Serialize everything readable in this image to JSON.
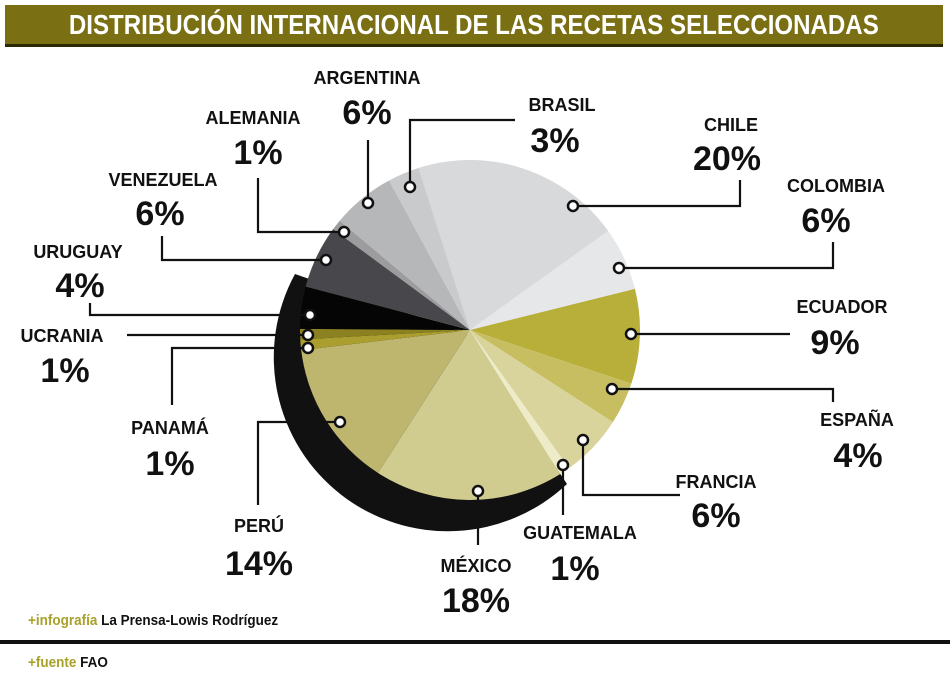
{
  "title": "DISTRIBUCIÓN INTERNACIONAL DE LAS RECETAS SELECCIONADAS",
  "chart_data": {
    "type": "pie",
    "title": "DISTRIBUCIÓN INTERNACIONAL DE LAS RECETAS SELECCIONADAS",
    "unit": "%",
    "start_angle_deg_clockwise_from_top": -17.6,
    "slices": [
      {
        "label": "CHILE",
        "value": 20,
        "display": "20%",
        "color": "#d8d9db"
      },
      {
        "label": "COLOMBIA",
        "value": 6,
        "display": "6%",
        "color": "#e6e7e9"
      },
      {
        "label": "ECUADOR",
        "value": 9,
        "display": "9%",
        "color": "#b8ae3a"
      },
      {
        "label": "ESPAÑA",
        "value": 4,
        "display": "4%",
        "color": "#c7be62"
      },
      {
        "label": "FRANCIA",
        "value": 6,
        "display": "6%",
        "color": "#d9d49c"
      },
      {
        "label": "GUATEMALA",
        "value": 1,
        "display": "1%",
        "color": "#eeebc8"
      },
      {
        "label": "MÉXICO",
        "value": 18,
        "display": "18%",
        "color": "#d0cc90"
      },
      {
        "label": "PERÚ",
        "value": 14,
        "display": "14%",
        "color": "#beb56f"
      },
      {
        "label": "PANAMÁ",
        "value": 1,
        "display": "1%",
        "color": "#a99e2e"
      },
      {
        "label": "UCRANIA",
        "value": 1,
        "display": "1%",
        "color": "#8b8120"
      },
      {
        "label": "URUGUAY",
        "value": 4,
        "display": "4%",
        "color": "#050505"
      },
      {
        "label": "VENEZUELA",
        "value": 6,
        "display": "6%",
        "color": "#48484c"
      },
      {
        "label": "ALEMANIA",
        "value": 1,
        "display": "1%",
        "color": "#9c9c9e"
      },
      {
        "label": "ARGENTINA",
        "value": 6,
        "display": "6%",
        "color": "#b6b7b9"
      },
      {
        "label": "BRASIL",
        "value": 3,
        "display": "3%",
        "color": "#c9cacc"
      }
    ]
  },
  "footer": {
    "credit_key": "+infografía",
    "credit_value": "La Prensa-Lowis Rodríguez",
    "source_key": "+fuente",
    "source_value": "FAO"
  },
  "colors": {
    "title_bar": "#7a6f12",
    "accent": "#a8a12a"
  }
}
